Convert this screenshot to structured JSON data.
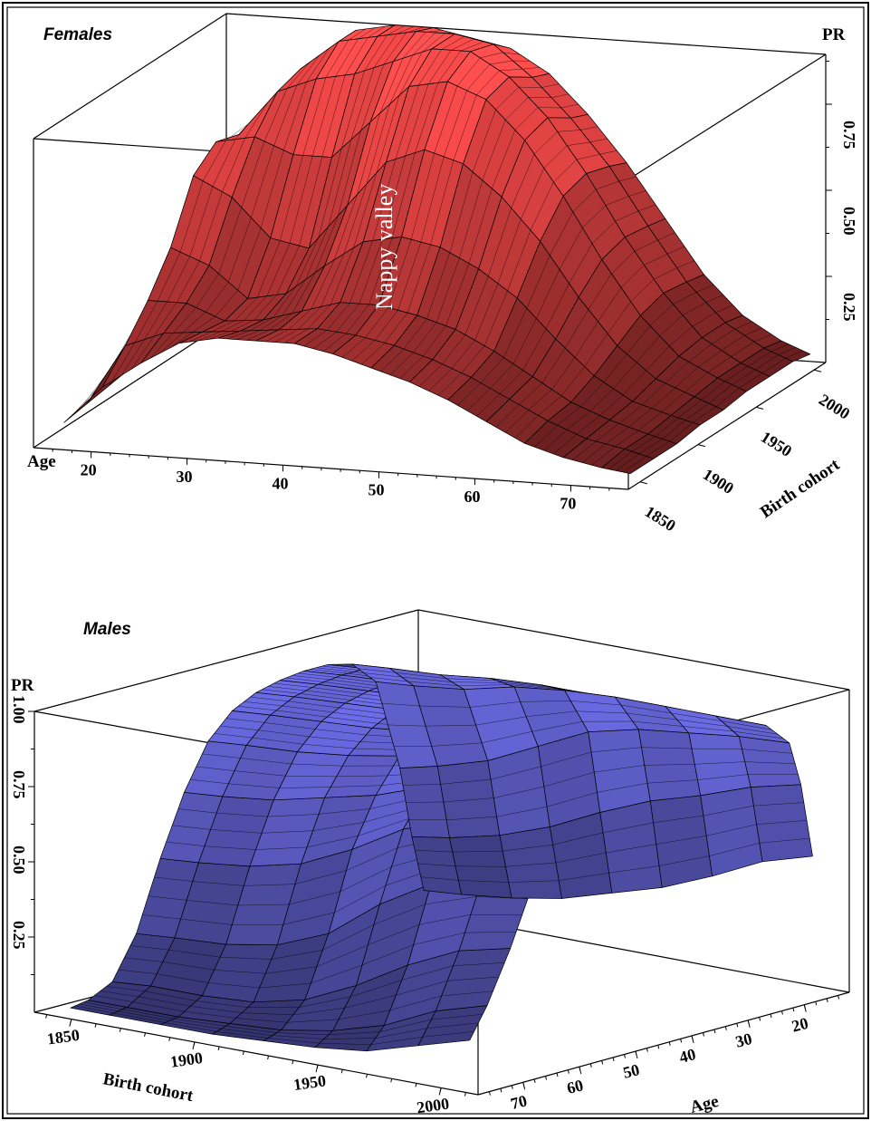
{
  "chart_data": [
    {
      "type": "surface",
      "title": "Females",
      "zlabel": "PR",
      "xlabel": "Age",
      "ylabel": "Birth cohort",
      "age_ticks": [
        20,
        30,
        40,
        50,
        60,
        70
      ],
      "cohort_ticks": [
        1850,
        1900,
        1950,
        2000
      ],
      "pr_ticks": [
        "0.25",
        "0.50",
        "0.75"
      ],
      "zlim": [
        0,
        0.9
      ],
      "annotation": "Nappy valley",
      "color": "#e04040",
      "ages": [
        16,
        20,
        24,
        28,
        32,
        36,
        40,
        44,
        48,
        52,
        56,
        60,
        64,
        68,
        72,
        75
      ],
      "cohorts": [
        1850,
        1870,
        1890,
        1910,
        1930,
        1950,
        1970,
        1990,
        2005
      ],
      "pr": [
        [
          0.05,
          0.15,
          0.22,
          0.28,
          0.3,
          0.3,
          0.3,
          0.28,
          0.25,
          0.22,
          0.18,
          0.13,
          0.08,
          0.05,
          0.03,
          0.02
        ],
        [
          0.06,
          0.22,
          0.26,
          0.27,
          0.28,
          0.29,
          0.3,
          0.29,
          0.27,
          0.24,
          0.2,
          0.15,
          0.1,
          0.06,
          0.04,
          0.02
        ],
        [
          0.07,
          0.3,
          0.3,
          0.26,
          0.27,
          0.3,
          0.33,
          0.33,
          0.31,
          0.28,
          0.23,
          0.17,
          0.11,
          0.07,
          0.04,
          0.02
        ],
        [
          0.08,
          0.4,
          0.36,
          0.28,
          0.3,
          0.38,
          0.45,
          0.47,
          0.45,
          0.4,
          0.33,
          0.23,
          0.14,
          0.08,
          0.05,
          0.03
        ],
        [
          0.08,
          0.55,
          0.5,
          0.4,
          0.38,
          0.5,
          0.62,
          0.66,
          0.63,
          0.55,
          0.44,
          0.3,
          0.18,
          0.1,
          0.06,
          0.03
        ],
        [
          0.07,
          0.6,
          0.62,
          0.58,
          0.58,
          0.68,
          0.78,
          0.8,
          0.76,
          0.66,
          0.52,
          0.36,
          0.22,
          0.12,
          0.07,
          0.04
        ],
        [
          0.06,
          0.58,
          0.7,
          0.74,
          0.76,
          0.8,
          0.84,
          0.84,
          0.78,
          0.68,
          0.54,
          0.38,
          0.24,
          0.13,
          0.07,
          0.04
        ],
        [
          0.05,
          0.54,
          0.72,
          0.8,
          0.82,
          0.84,
          0.84,
          0.82,
          0.74,
          0.64,
          0.52,
          0.37,
          0.23,
          0.13,
          0.07,
          0.04
        ],
        [
          0.05,
          0.52,
          0.72,
          0.8,
          0.82,
          0.82,
          0.8,
          0.78,
          0.72,
          0.62,
          0.5,
          0.36,
          0.22,
          0.12,
          0.06,
          0.03
        ]
      ]
    },
    {
      "type": "surface",
      "title": "Males",
      "zlabel": "PR",
      "xlabel": "Birth cohort",
      "ylabel": "Age",
      "cohort_ticks": [
        1850,
        1900,
        1950,
        2000
      ],
      "age_ticks": [
        20,
        30,
        40,
        50,
        60,
        70
      ],
      "pr_ticks": [
        "0.25",
        "0.50",
        "0.75",
        "1.00"
      ],
      "zlim": [
        0,
        1.05
      ],
      "color": "#4040c8",
      "ages": [
        16,
        18,
        20,
        24,
        28,
        32,
        36,
        40,
        44,
        48,
        52,
        56,
        60,
        64,
        68,
        72,
        75
      ],
      "cohorts": [
        1850,
        1870,
        1890,
        1910,
        1930,
        1950,
        1970,
        1990,
        2005
      ],
      "pr": [
        [
          0.45,
          0.7,
          0.85,
          0.93,
          0.96,
          0.97,
          0.97,
          0.96,
          0.95,
          0.93,
          0.9,
          0.85,
          0.78,
          0.62,
          0.42,
          0.25,
          0.15
        ],
        [
          0.4,
          0.66,
          0.84,
          0.93,
          0.96,
          0.97,
          0.97,
          0.96,
          0.95,
          0.93,
          0.9,
          0.85,
          0.77,
          0.6,
          0.38,
          0.2,
          0.1
        ],
        [
          0.32,
          0.6,
          0.82,
          0.93,
          0.96,
          0.97,
          0.97,
          0.96,
          0.95,
          0.93,
          0.89,
          0.83,
          0.74,
          0.55,
          0.3,
          0.12,
          0.05
        ],
        [
          0.25,
          0.55,
          0.8,
          0.93,
          0.96,
          0.97,
          0.97,
          0.96,
          0.95,
          0.92,
          0.88,
          0.8,
          0.68,
          0.45,
          0.2,
          0.07,
          0.03
        ],
        [
          0.2,
          0.48,
          0.76,
          0.92,
          0.96,
          0.97,
          0.97,
          0.96,
          0.94,
          0.91,
          0.85,
          0.74,
          0.58,
          0.32,
          0.12,
          0.04,
          0.02
        ],
        [
          0.15,
          0.4,
          0.68,
          0.9,
          0.95,
          0.96,
          0.96,
          0.95,
          0.93,
          0.89,
          0.82,
          0.7,
          0.5,
          0.25,
          0.08,
          0.03,
          0.01
        ],
        [
          0.12,
          0.34,
          0.6,
          0.86,
          0.93,
          0.95,
          0.95,
          0.94,
          0.92,
          0.88,
          0.8,
          0.66,
          0.46,
          0.22,
          0.07,
          0.02,
          0.01
        ],
        [
          0.1,
          0.3,
          0.55,
          0.84,
          0.92,
          0.94,
          0.94,
          0.93,
          0.91,
          0.87,
          0.79,
          0.64,
          0.44,
          0.21,
          0.07,
          0.02,
          0.01
        ],
        [
          0.09,
          0.28,
          0.52,
          0.83,
          0.91,
          0.93,
          0.93,
          0.92,
          0.9,
          0.86,
          0.78,
          0.63,
          0.43,
          0.2,
          0.06,
          0.02,
          0.01
        ]
      ]
    }
  ]
}
